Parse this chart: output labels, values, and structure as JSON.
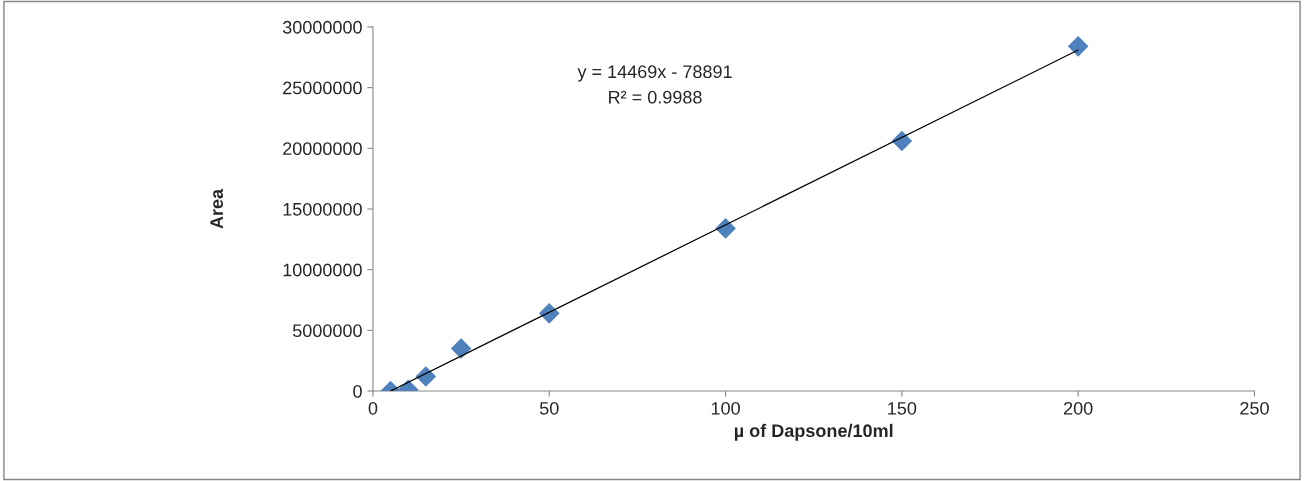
{
  "chart_data": {
    "type": "scatter",
    "xlabel": "µ of Dapsone/10ml",
    "ylabel": "Area",
    "annotations": [
      "y = 14469x - 78891",
      "R² = 0.9988"
    ],
    "series": [
      {
        "color": "#4f81bd",
        "marker": "diamond",
        "x": [
          5,
          10,
          15,
          25,
          50,
          100,
          150,
          200
        ],
        "values": [
          0,
          100000,
          1200000,
          3500000,
          6400000,
          13400000,
          20600000,
          28400000
        ]
      },
      {
        "type": "line",
        "color": "#000000",
        "marker": "none",
        "line_style": "solid",
        "x": [
          5,
          200
        ],
        "values": [
          0,
          28100000
        ]
      }
    ],
    "xlim": [
      0,
      250
    ],
    "xticks": [
      0,
      50,
      100,
      150,
      200,
      250
    ],
    "ylim": [
      0,
      30000000
    ],
    "yticks": [
      0,
      5000000,
      10000000,
      15000000,
      20000000,
      25000000,
      30000000
    ],
    "grid": false,
    "legend": false
  }
}
